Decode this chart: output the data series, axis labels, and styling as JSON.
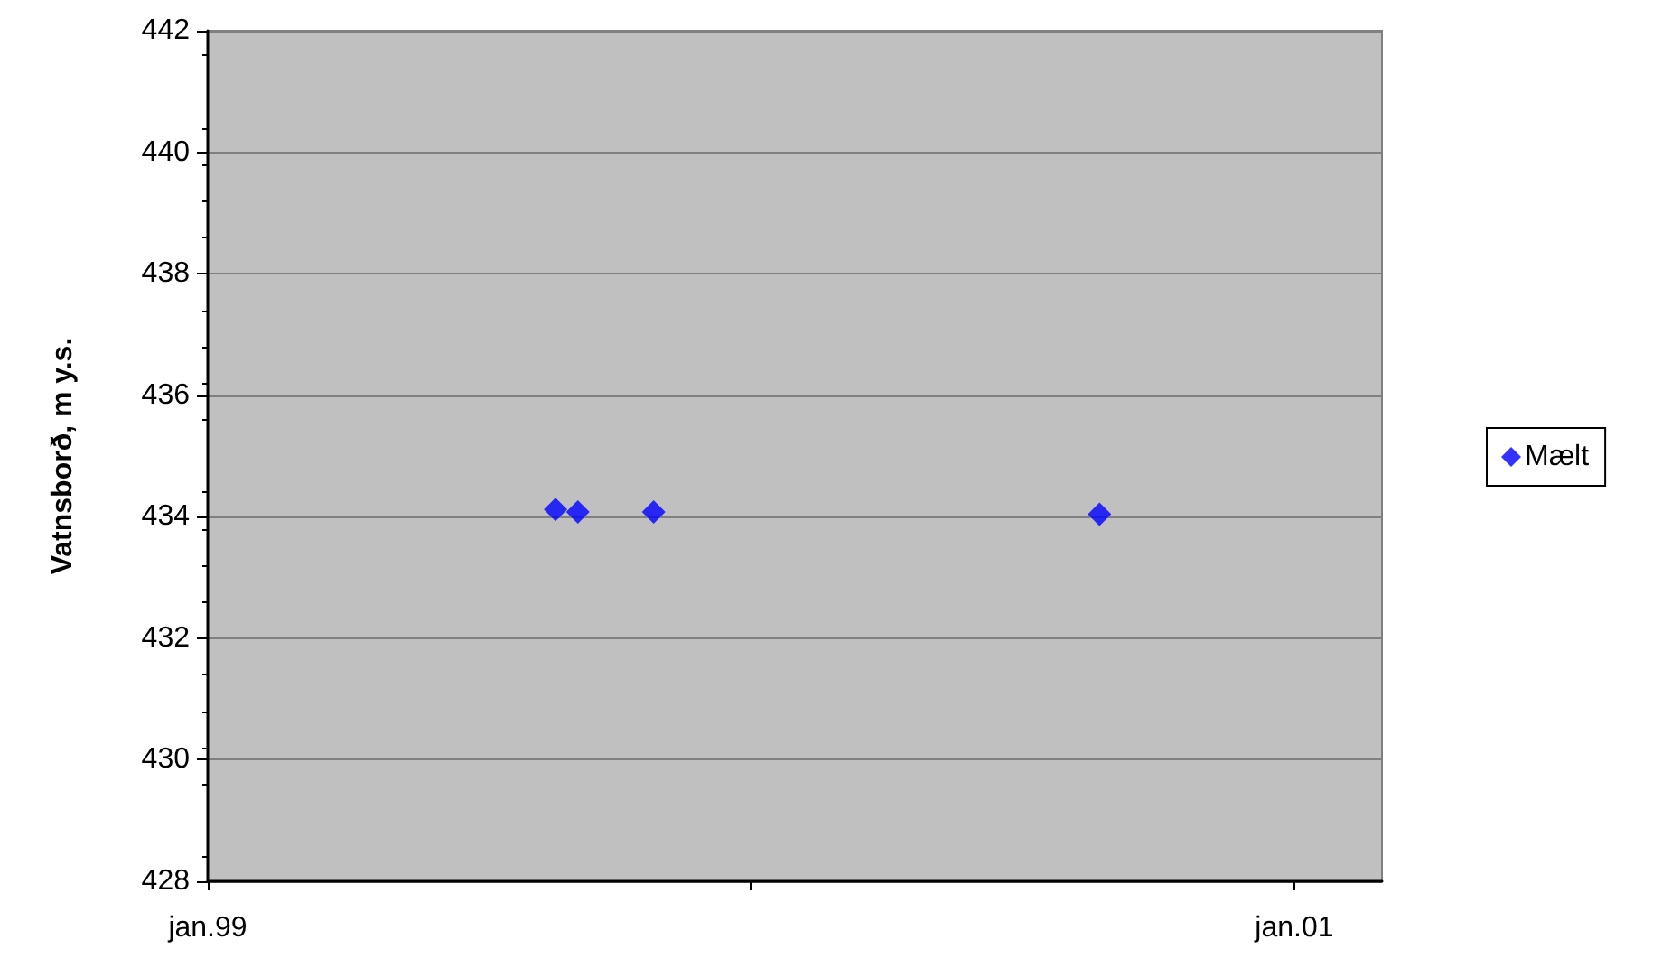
{
  "chart_data": {
    "type": "scatter",
    "ylabel": "Vatnsborð, m y.s.",
    "x": [
      "1999-08-23",
      "1999-09-07",
      "1999-10-28",
      "2000-08-23"
    ],
    "series": [
      {
        "name": "Mælt",
        "color": "#0000ff",
        "values": [
          434.12,
          434.08,
          434.08,
          434.04
        ]
      }
    ],
    "xlim": [
      "1999-01-01",
      "2001-03-01"
    ],
    "xticks": [
      {
        "value": "1999-01",
        "label": "jan.99"
      },
      {
        "value": "2000-01",
        "label": null
      },
      {
        "value": "2001-01",
        "label": "jan.01"
      }
    ],
    "ylim": [
      428,
      442
    ],
    "yticks": [
      428,
      430,
      432,
      434,
      436,
      438,
      440,
      442
    ],
    "grid": "y",
    "legend": "right",
    "marker": "diamond"
  }
}
